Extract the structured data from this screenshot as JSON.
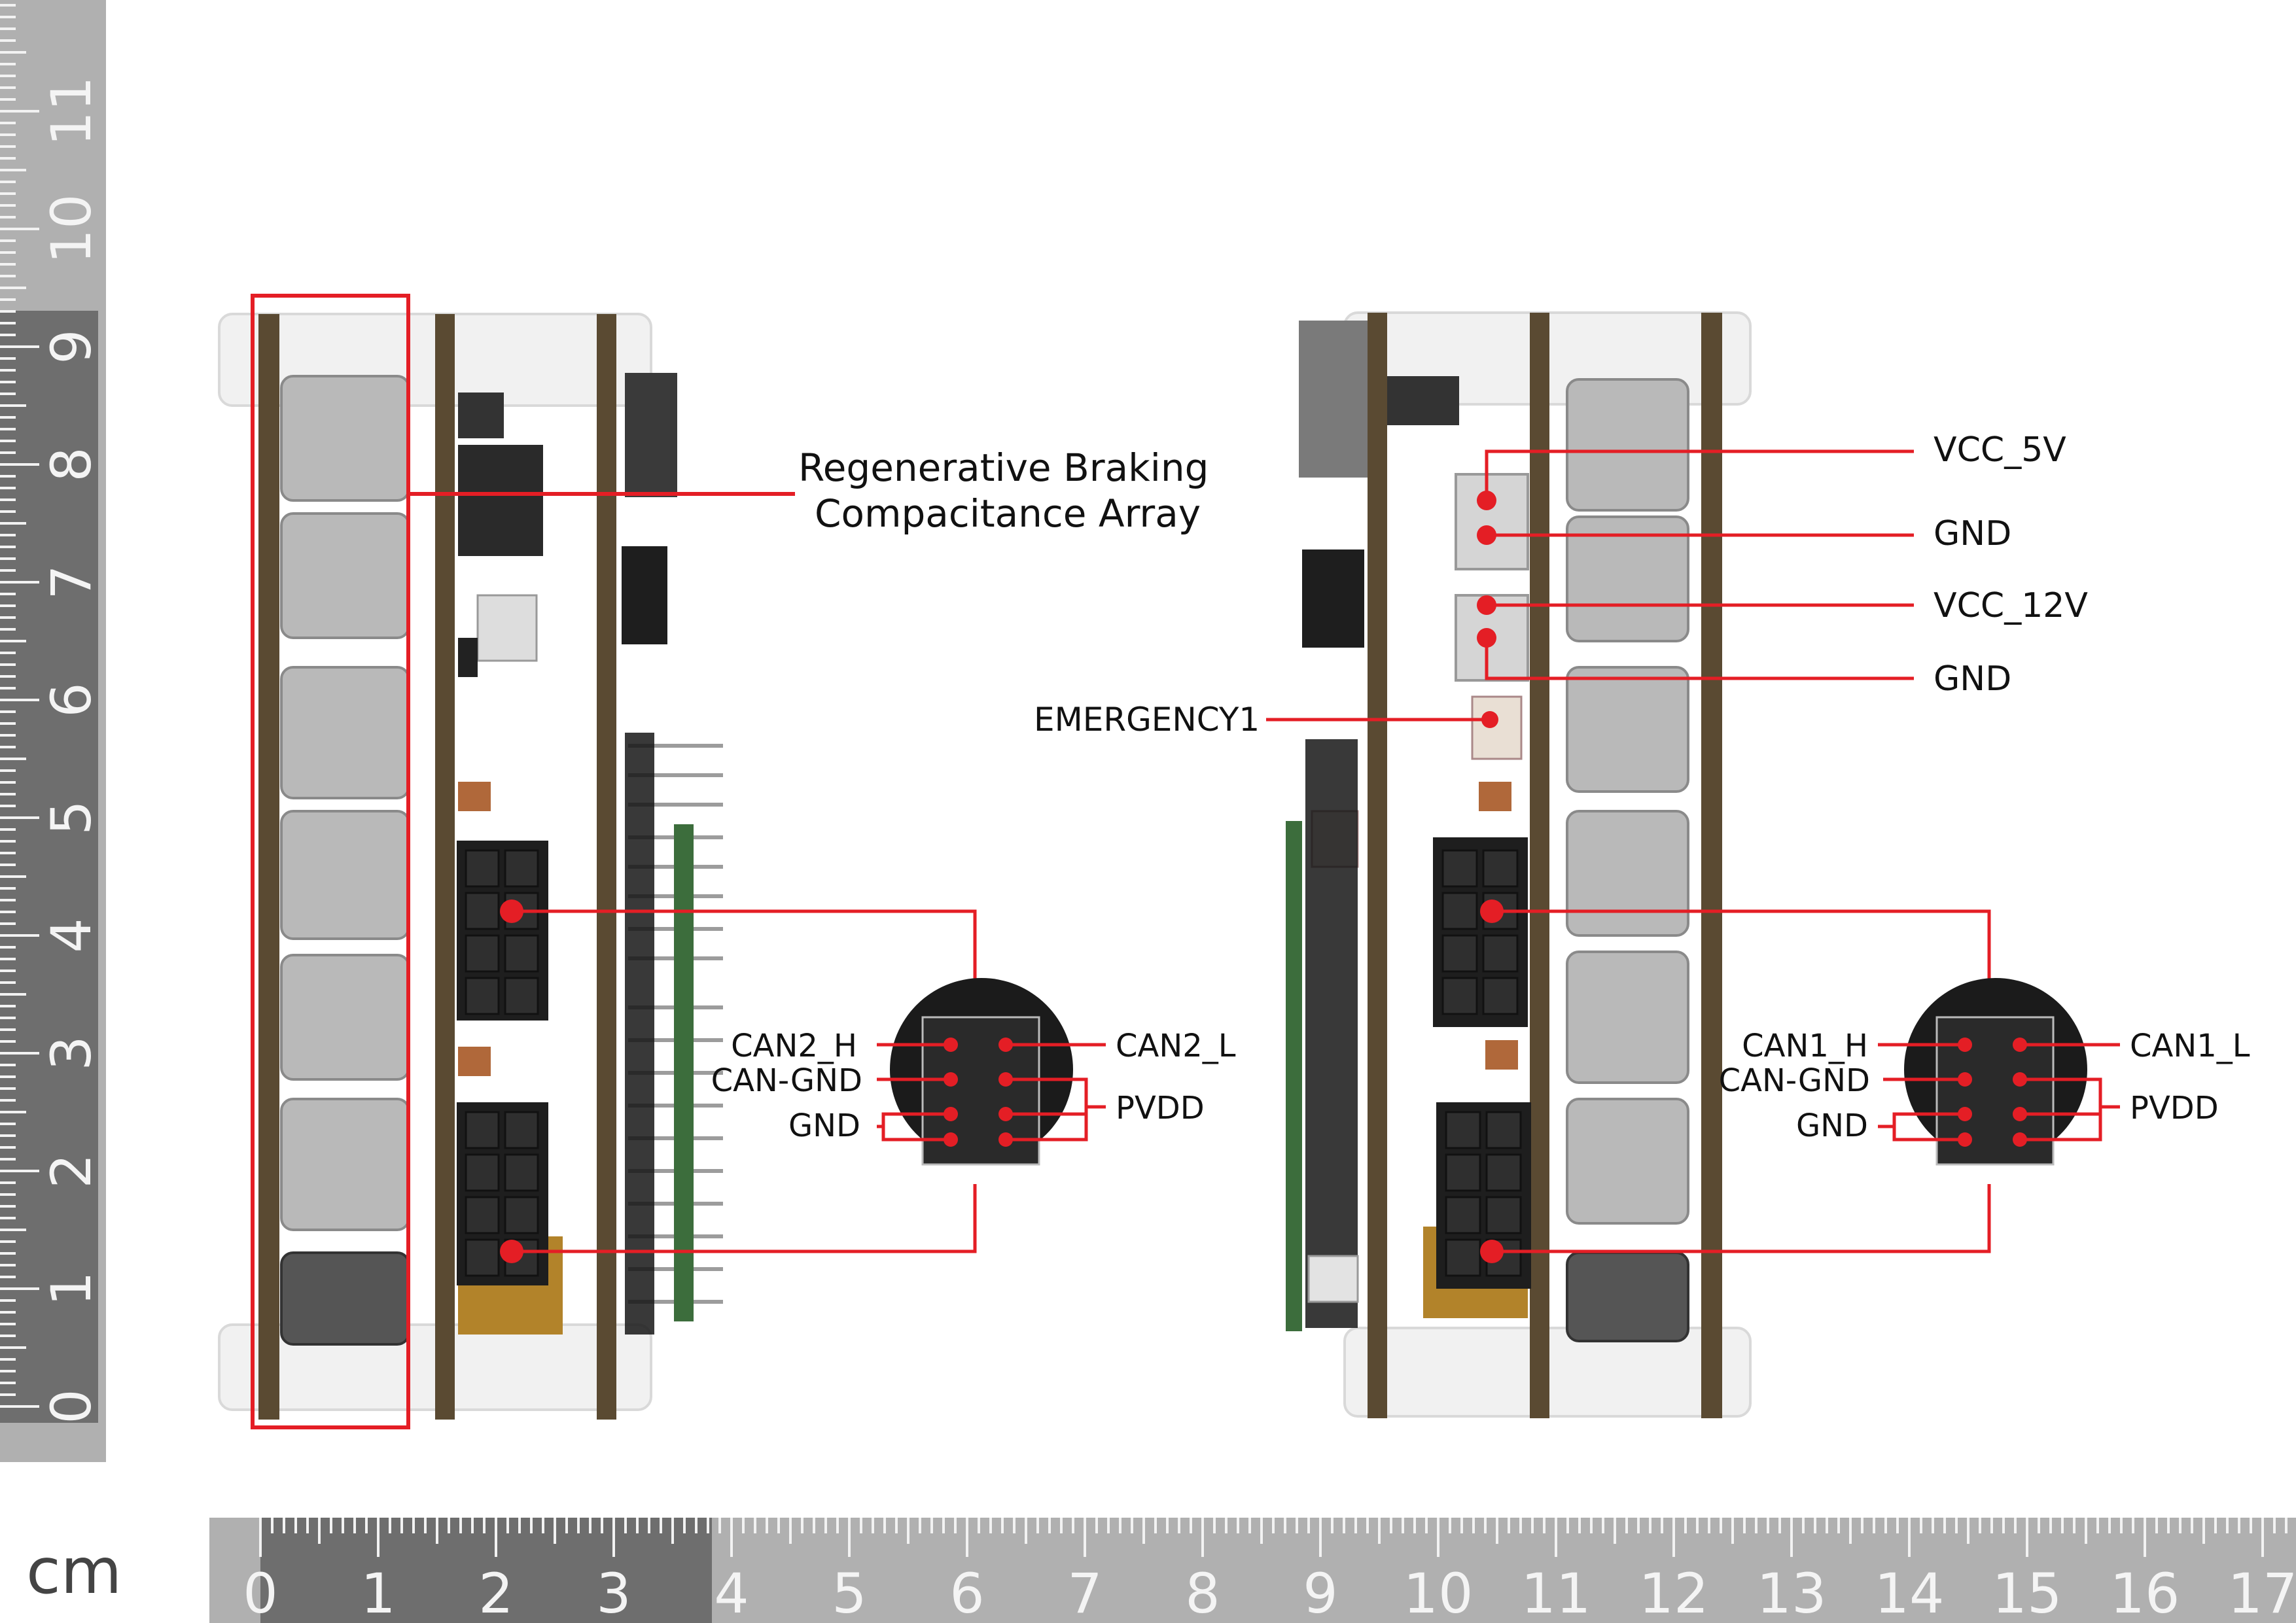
{
  "colors": {
    "accent": "#e41e25",
    "ruler_light": "#b0b0b0",
    "ruler_dark": "#6e6e6e",
    "pcb": "#5a4a32",
    "capacitor": "#b9b9b9",
    "connector": "#1e1e1e"
  },
  "unit_label": "cm",
  "vertical_ruler": {
    "labels": [
      "0",
      "1",
      "2",
      "3",
      "4",
      "5",
      "6",
      "7",
      "8",
      "9",
      "10",
      "11"
    ]
  },
  "horizontal_ruler": {
    "labels": [
      "0",
      "1",
      "2",
      "3",
      "4",
      "5",
      "6",
      "7",
      "8",
      "9",
      "10",
      "11",
      "12",
      "13",
      "14",
      "15",
      "16",
      "17"
    ]
  },
  "left_board": {
    "annotation": {
      "line1": "Regenerative Braking",
      "line2": "Compacitance Array"
    },
    "pinout": {
      "top_left": "CAN2_H",
      "mid_left": "CAN-GND",
      "bottom_left": "GND",
      "top_right": "CAN2_L",
      "mid_right": "PVDD"
    }
  },
  "right_board": {
    "power_pins": [
      "VCC_5V",
      "GND",
      "VCC_12V",
      "GND"
    ],
    "emergency_label": "EMERGENCY1",
    "pinout": {
      "top_left": "CAN1_H",
      "mid_left": "CAN-GND",
      "bottom_left": "GND",
      "top_right": "CAN1_L",
      "mid_right": "PVDD"
    }
  }
}
